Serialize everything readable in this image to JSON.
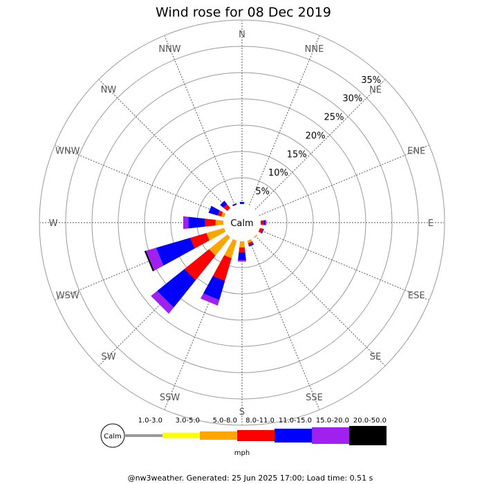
{
  "chart_data": {
    "type": "wind-rose",
    "title": "Wind rose for 08 Dec 2019",
    "calm_label": "Calm",
    "directions": [
      "N",
      "NNE",
      "NE",
      "ENE",
      "E",
      "ESE",
      "SE",
      "SSE",
      "S",
      "SSW",
      "SW",
      "WSW",
      "W",
      "WNW",
      "NW",
      "NNW"
    ],
    "radial_ticks": [
      "5%",
      "10%",
      "15%",
      "20%",
      "25%",
      "30%",
      "35%"
    ],
    "radial_values": [
      5,
      10,
      15,
      20,
      25,
      30,
      35
    ],
    "rmax": 35,
    "unit": "mph",
    "speed_bins": [
      {
        "label": "Calm",
        "color": "#ffffff"
      },
      {
        "label": "1.0-3.0",
        "color": "#999999"
      },
      {
        "label": "3.0-5.0",
        "color": "#ffff00"
      },
      {
        "label": "5.0-8.0",
        "color": "#ffa500"
      },
      {
        "label": "8.0-11.0",
        "color": "#ff0000"
      },
      {
        "label": "11.0-15.0",
        "color": "#0000ff"
      },
      {
        "label": "15.0-20.0",
        "color": "#a020f0"
      },
      {
        "label": "20.0-50.0",
        "color": "#000000"
      }
    ],
    "series": [
      {
        "name": "1.0-3.0",
        "values": [
          0,
          0,
          0,
          0,
          0,
          0,
          0,
          0,
          0,
          0,
          0,
          0,
          0,
          0,
          0,
          0
        ]
      },
      {
        "name": "3.0-5.0",
        "values": [
          0,
          0,
          0,
          0,
          0,
          0,
          0,
          0,
          0,
          0,
          0,
          0,
          0,
          0,
          0,
          0
        ]
      },
      {
        "name": "5.0-8.0",
        "values": [
          0,
          0,
          0,
          0,
          0,
          0,
          0.2,
          0.5,
          1.2,
          3.5,
          4.5,
          3.5,
          1.5,
          0.6,
          0,
          0
        ]
      },
      {
        "name": "8.0-11.0",
        "values": [
          0,
          0,
          0,
          0,
          0.6,
          0.6,
          0,
          0.4,
          0.9,
          4.5,
          6.0,
          3.2,
          2.0,
          0.7,
          1.0,
          0
        ]
      },
      {
        "name": "11.0-15.0",
        "values": [
          0.4,
          0,
          0,
          0,
          0.3,
          0.2,
          0,
          0.3,
          1.5,
          3.8,
          6.7,
          6.8,
          3.2,
          1.8,
          0.8,
          0.3
        ]
      },
      {
        "name": "15.0-20.0",
        "values": [
          0,
          0,
          0,
          0,
          0.2,
          0,
          0,
          0,
          0.3,
          1.1,
          1.5,
          2.0,
          1.0,
          0,
          0,
          0
        ]
      },
      {
        "name": "20.0-50.0",
        "values": [
          0,
          0,
          0,
          0,
          0,
          0,
          0,
          0,
          0,
          0,
          0,
          0.3,
          0,
          0,
          0,
          0
        ]
      }
    ],
    "grid": true,
    "legend_position": "bottom"
  },
  "footer": "@nw3weather. Generated: 25 Jun 2025 17:00; Load time: 0.51 s"
}
